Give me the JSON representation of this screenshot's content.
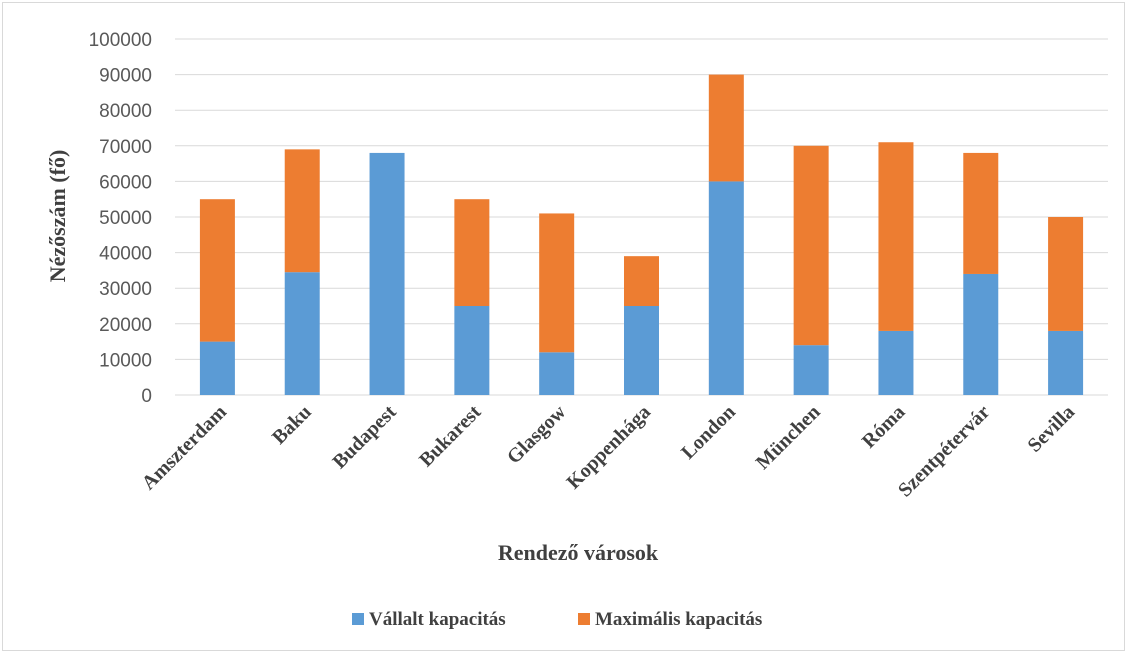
{
  "chart_data": {
    "type": "bar",
    "stacked": true,
    "xlabel": "Rendező városok",
    "ylabel": "Nézőszám (fő)",
    "categories": [
      "Amszterdam",
      "Baku",
      "Budapest",
      "Bukarest",
      "Glasgow",
      "Koppenhága",
      "London",
      "München",
      "Róma",
      "Szentpétervár",
      "Sevilla"
    ],
    "series": [
      {
        "name": "Vállalt kapacitás",
        "color": "#5b9bd5",
        "values": [
          15000,
          34500,
          68000,
          25000,
          12000,
          25000,
          60000,
          14000,
          18000,
          34000,
          18000
        ]
      },
      {
        "name": "Maximális kapacitás",
        "color": "#ed7d31",
        "values": [
          40000,
          34500,
          0,
          30000,
          39000,
          14000,
          30000,
          56000,
          53000,
          34000,
          32000
        ]
      }
    ],
    "ylim": [
      0,
      100000
    ],
    "yticks": [
      0,
      10000,
      20000,
      30000,
      40000,
      50000,
      60000,
      70000,
      80000,
      90000,
      100000
    ],
    "grid": true,
    "legend": "bottom",
    "gridColor": "#d9d9d9"
  }
}
